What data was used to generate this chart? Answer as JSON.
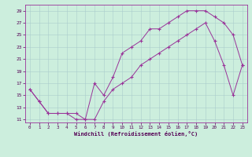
{
  "xlabel": "Windchill (Refroidissement éolien,°C)",
  "bg_color": "#cceedd",
  "grid_color": "#aacccc",
  "line_color": "#993399",
  "xlim": [
    -0.5,
    23.5
  ],
  "ylim": [
    10.5,
    30.0
  ],
  "yticks": [
    11,
    13,
    15,
    17,
    19,
    21,
    23,
    25,
    27,
    29
  ],
  "xticks": [
    0,
    1,
    2,
    3,
    4,
    5,
    6,
    7,
    8,
    9,
    10,
    11,
    12,
    13,
    14,
    15,
    16,
    17,
    18,
    19,
    20,
    21,
    22,
    23
  ],
  "line1_x": [
    0,
    1,
    2,
    3,
    4,
    5,
    6,
    7,
    8,
    9,
    10,
    11,
    12,
    13,
    14,
    15,
    16,
    17,
    18,
    19,
    20,
    21,
    22,
    23
  ],
  "line1_y": [
    16,
    14,
    12,
    12,
    12,
    12,
    11,
    17,
    15,
    18,
    22,
    23,
    24,
    26,
    26,
    27,
    28,
    29,
    29,
    29,
    28,
    27,
    25,
    20
  ],
  "line2_x": [
    0,
    1,
    2,
    3,
    4,
    5,
    6,
    7,
    8,
    9,
    10,
    11,
    12,
    13,
    14,
    15,
    16,
    17,
    18,
    19,
    20,
    21,
    22,
    23
  ],
  "line2_y": [
    16,
    14,
    12,
    12,
    12,
    11,
    11,
    11,
    14,
    16,
    17,
    18,
    20,
    21,
    22,
    23,
    24,
    25,
    26,
    27,
    24,
    20,
    15,
    20
  ]
}
